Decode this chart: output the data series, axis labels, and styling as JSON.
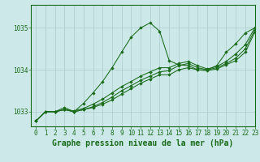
{
  "title": "Graphe pression niveau de la mer (hPa)",
  "background_color": "#cce8e8",
  "grid_color": "#aacccc",
  "line_color": "#1a6b1a",
  "marker_color": "#1a6b1a",
  "xlim": [
    -0.5,
    23
  ],
  "ylim": [
    1032.65,
    1035.55
  ],
  "yticks": [
    1033,
    1034,
    1035
  ],
  "xticks": [
    0,
    1,
    2,
    3,
    4,
    5,
    6,
    7,
    8,
    9,
    10,
    11,
    12,
    13,
    14,
    15,
    16,
    17,
    18,
    19,
    20,
    21,
    22,
    23
  ],
  "series": [
    [
      1032.78,
      1033.0,
      1033.0,
      1033.1,
      1033.0,
      1033.2,
      1033.45,
      1033.72,
      1034.05,
      1034.42,
      1034.78,
      1035.0,
      1035.12,
      1034.92,
      1034.22,
      1034.12,
      1034.1,
      1034.0,
      1034.0,
      1034.1,
      1034.42,
      1034.62,
      1034.88,
      1035.0
    ],
    [
      1032.78,
      1033.0,
      1033.0,
      1033.05,
      1033.0,
      1033.05,
      1033.12,
      1033.22,
      1033.35,
      1033.5,
      1033.62,
      1033.75,
      1033.85,
      1033.95,
      1033.98,
      1034.1,
      1034.15,
      1034.05,
      1034.0,
      1034.05,
      1034.15,
      1034.28,
      1034.5,
      1034.95
    ],
    [
      1032.78,
      1033.0,
      1033.0,
      1033.05,
      1033.02,
      1033.08,
      1033.18,
      1033.3,
      1033.45,
      1033.6,
      1033.72,
      1033.85,
      1033.95,
      1034.05,
      1034.05,
      1034.15,
      1034.2,
      1034.1,
      1034.02,
      1034.08,
      1034.2,
      1034.38,
      1034.6,
      1035.0
    ],
    [
      1032.78,
      1033.0,
      1033.0,
      1033.05,
      1033.0,
      1033.05,
      1033.1,
      1033.18,
      1033.28,
      1033.42,
      1033.55,
      1033.68,
      1033.78,
      1033.88,
      1033.88,
      1034.0,
      1034.05,
      1034.0,
      1033.98,
      1034.02,
      1034.12,
      1034.22,
      1034.42,
      1034.9
    ]
  ],
  "tick_fontsize": 5.5,
  "title_fontsize": 7
}
